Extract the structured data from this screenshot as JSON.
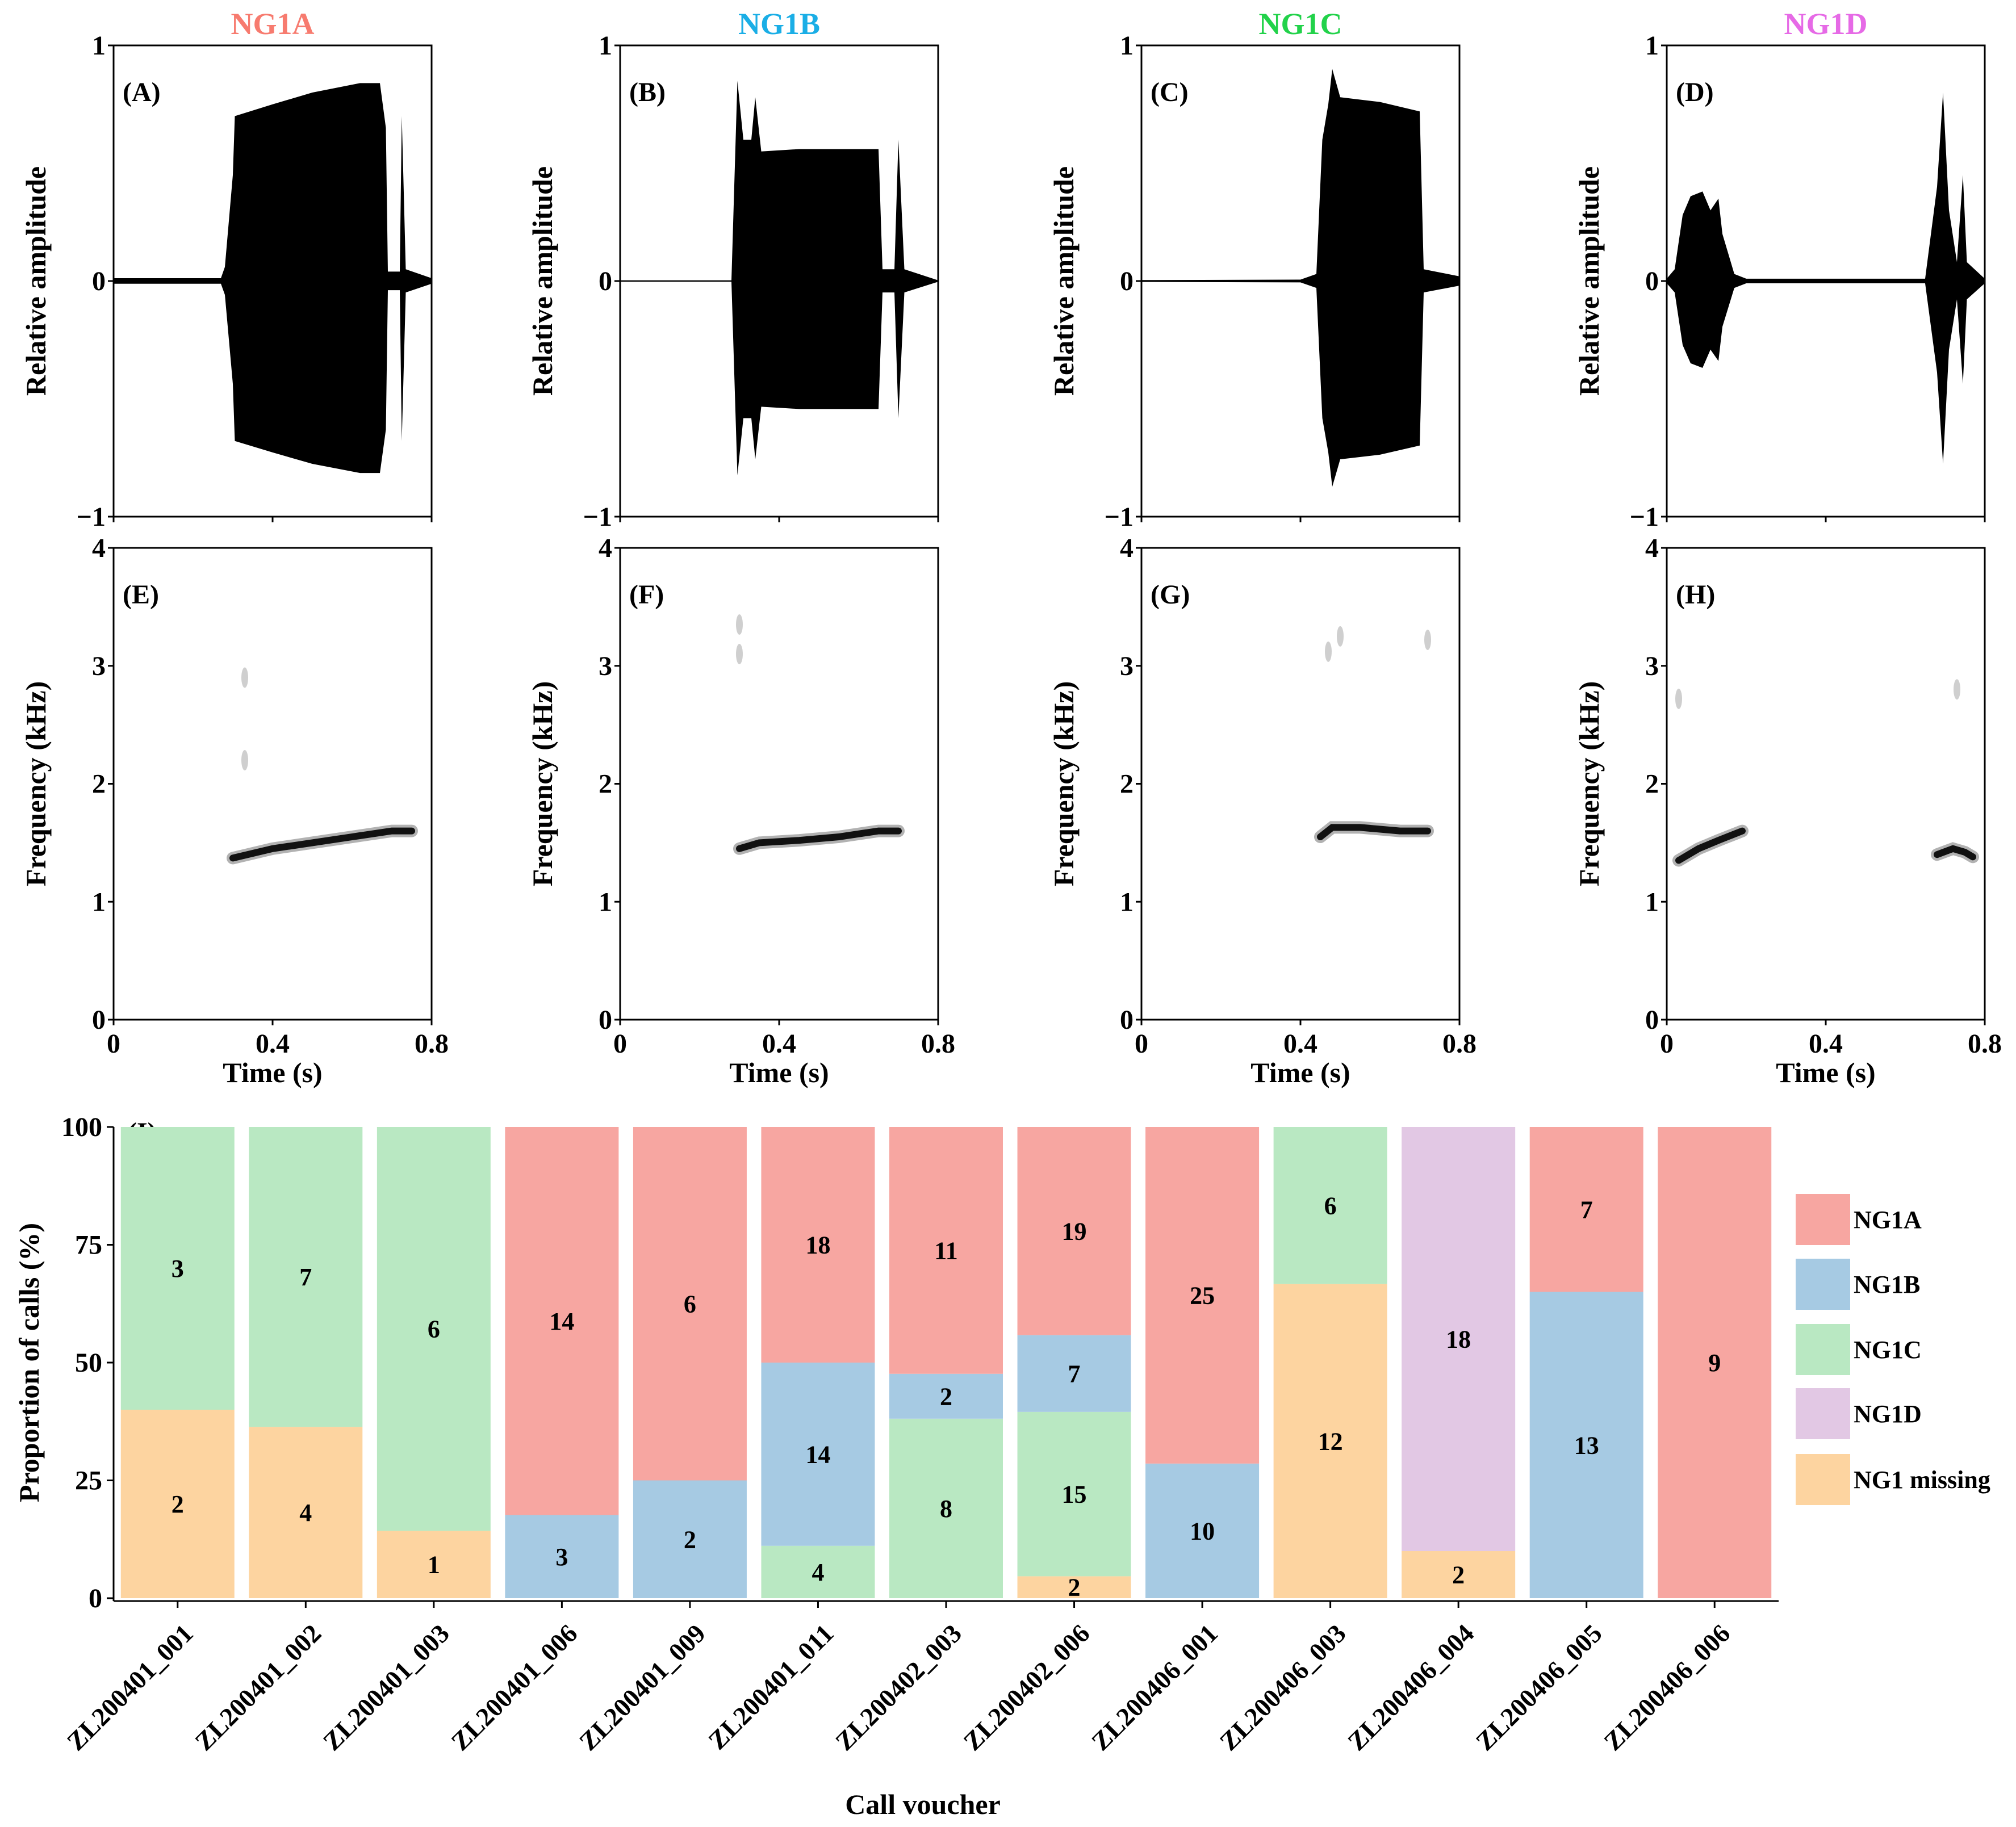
{
  "colors": {
    "NG1A": "#f7a6a1",
    "NG1B": "#a6cae3",
    "NG1C": "#b9e8c2",
    "NG1D": "#e2c8e4",
    "NG1 missing": "#fdd4a0",
    "title_NG1A": "#f77b6f",
    "title_NG1B": "#1aaee6",
    "title_NG1C": "#22d24a",
    "title_NG1D": "#e66ae6"
  },
  "chart_data": [
    {
      "type": "line",
      "kind": "waveform",
      "panels": [
        {
          "label": "(A)",
          "title": "NG1A",
          "ylabel": "Relative amplitude",
          "ylim": [
            -1,
            1
          ],
          "yticks": [
            "1",
            "0",
            "−1"
          ],
          "xlim": [
            0,
            0.8
          ],
          "xlabel": "",
          "envelope": [
            [
              0,
              0.012
            ],
            [
              0.27,
              0.012
            ],
            [
              0.28,
              0.06
            ],
            [
              0.3,
              0.45
            ],
            [
              0.305,
              0.7
            ],
            [
              0.4,
              0.75
            ],
            [
              0.5,
              0.8
            ],
            [
              0.62,
              0.84
            ],
            [
              0.67,
              0.84
            ],
            [
              0.685,
              0.65
            ],
            [
              0.69,
              0.04
            ],
            [
              0.72,
              0.04
            ],
            [
              0.725,
              0.7
            ],
            [
              0.735,
              0.05
            ],
            [
              0.8,
              0.012
            ]
          ]
        },
        {
          "label": "(B)",
          "title": "NG1B",
          "ylabel": "Relative amplitude",
          "ylim": [
            -1,
            1
          ],
          "yticks": [
            "1",
            "0",
            "−1"
          ],
          "xlim": [
            0,
            0.8
          ],
          "xlabel": "",
          "envelope": [
            [
              0,
              0.003
            ],
            [
              0.28,
              0.003
            ],
            [
              0.295,
              0.85
            ],
            [
              0.31,
              0.6
            ],
            [
              0.33,
              0.6
            ],
            [
              0.34,
              0.78
            ],
            [
              0.355,
              0.55
            ],
            [
              0.45,
              0.56
            ],
            [
              0.65,
              0.56
            ],
            [
              0.66,
              0.05
            ],
            [
              0.69,
              0.05
            ],
            [
              0.7,
              0.6
            ],
            [
              0.715,
              0.05
            ],
            [
              0.8,
              0.003
            ]
          ]
        },
        {
          "label": "(C)",
          "title": "NG1C",
          "ylabel": "Relative amplitude",
          "ylim": [
            -1,
            1
          ],
          "yticks": [
            "1",
            "0",
            "−1"
          ],
          "xlim": [
            0,
            0.8
          ],
          "xlabel": "",
          "envelope": [
            [
              0,
              0.004
            ],
            [
              0.4,
              0.006
            ],
            [
              0.44,
              0.03
            ],
            [
              0.455,
              0.6
            ],
            [
              0.47,
              0.75
            ],
            [
              0.48,
              0.9
            ],
            [
              0.5,
              0.78
            ],
            [
              0.6,
              0.76
            ],
            [
              0.7,
              0.72
            ],
            [
              0.71,
              0.05
            ],
            [
              0.8,
              0.02
            ]
          ]
        },
        {
          "label": "(D)",
          "title": "NG1D",
          "ylabel": "Relative amplitude",
          "ylim": [
            -1,
            1
          ],
          "yticks": [
            "1",
            "0",
            "−1"
          ],
          "xlim": [
            0,
            0.8
          ],
          "xlabel": "",
          "envelope": [
            [
              0,
              0.01
            ],
            [
              0.02,
              0.05
            ],
            [
              0.04,
              0.28
            ],
            [
              0.06,
              0.36
            ],
            [
              0.09,
              0.38
            ],
            [
              0.11,
              0.3
            ],
            [
              0.13,
              0.35
            ],
            [
              0.14,
              0.2
            ],
            [
              0.17,
              0.03
            ],
            [
              0.2,
              0.01
            ],
            [
              0.65,
              0.01
            ],
            [
              0.68,
              0.4
            ],
            [
              0.695,
              0.8
            ],
            [
              0.71,
              0.3
            ],
            [
              0.73,
              0.08
            ],
            [
              0.745,
              0.45
            ],
            [
              0.755,
              0.08
            ],
            [
              0.8,
              0.01
            ]
          ]
        }
      ]
    },
    {
      "type": "line",
      "kind": "spectrogram",
      "panels": [
        {
          "label": "(E)",
          "ylabel": "Frequency (kHz)",
          "xlabel": "Time (s)",
          "ylim": [
            0,
            4
          ],
          "xlim": [
            0,
            0.8
          ],
          "yticks": [
            "4",
            "3",
            "2",
            "1",
            "0"
          ],
          "xticks": [
            "0",
            "0.4",
            "0.8"
          ],
          "trace": [
            [
              0.3,
              1.37
            ],
            [
              0.4,
              1.45
            ],
            [
              0.5,
              1.5
            ],
            [
              0.6,
              1.55
            ],
            [
              0.7,
              1.6
            ],
            [
              0.75,
              1.6
            ]
          ],
          "faint": [
            [
              0.33,
              2.9
            ],
            [
              0.33,
              2.2
            ]
          ]
        },
        {
          "label": "(F)",
          "ylabel": "Frequency (kHz)",
          "xlabel": "Time (s)",
          "ylim": [
            0,
            4
          ],
          "xlim": [
            0,
            0.8
          ],
          "yticks": [
            "4",
            "3",
            "2",
            "1",
            "0"
          ],
          "xticks": [
            "0",
            "0.4",
            "0.8"
          ],
          "trace": [
            [
              0.3,
              1.45
            ],
            [
              0.35,
              1.5
            ],
            [
              0.45,
              1.52
            ],
            [
              0.55,
              1.55
            ],
            [
              0.65,
              1.6
            ],
            [
              0.7,
              1.6
            ]
          ],
          "faint": [
            [
              0.3,
              3.35
            ],
            [
              0.3,
              3.1
            ]
          ]
        },
        {
          "label": "(G)",
          "ylabel": "Frequency (kHz)",
          "xlabel": "Time (s)",
          "ylim": [
            0,
            4
          ],
          "xlim": [
            0,
            0.8
          ],
          "yticks": [
            "4",
            "3",
            "2",
            "1",
            "0"
          ],
          "xticks": [
            "0",
            "0.4",
            "0.8"
          ],
          "trace": [
            [
              0.45,
              1.55
            ],
            [
              0.48,
              1.63
            ],
            [
              0.55,
              1.63
            ],
            [
              0.65,
              1.6
            ],
            [
              0.72,
              1.6
            ]
          ],
          "faint": [
            [
              0.47,
              3.12
            ],
            [
              0.5,
              3.25
            ],
            [
              0.72,
              3.22
            ]
          ]
        },
        {
          "label": "(H)",
          "ylabel": "Frequency (kHz)",
          "xlabel": "Time (s)",
          "ylim": [
            0,
            4
          ],
          "xlim": [
            0,
            0.8
          ],
          "yticks": [
            "4",
            "3",
            "2",
            "1",
            "0"
          ],
          "xticks": [
            "0",
            "0.4",
            "0.8"
          ],
          "trace": [
            [
              0.03,
              1.35
            ],
            [
              0.08,
              1.45
            ],
            [
              0.13,
              1.52
            ],
            [
              0.19,
              1.6
            ]
          ],
          "trace2": [
            [
              0.68,
              1.4
            ],
            [
              0.72,
              1.45
            ],
            [
              0.75,
              1.42
            ],
            [
              0.77,
              1.38
            ]
          ],
          "faint": [
            [
              0.03,
              2.72
            ],
            [
              0.73,
              2.8
            ]
          ]
        }
      ]
    },
    {
      "type": "bar",
      "stacked": true,
      "label": "(I)",
      "ylabel": "Proportion of calls (%)",
      "xlabel": "Call voucher",
      "ylim": [
        0,
        100
      ],
      "yticks": [
        "0",
        "25",
        "50",
        "75",
        "100"
      ],
      "categories": [
        "ZL200401_001",
        "ZL200401_002",
        "ZL200401_003",
        "ZL200401_006",
        "ZL200401_009",
        "ZL200401_011",
        "ZL200402_003",
        "ZL200402_006",
        "ZL200406_001",
        "ZL200406_003",
        "ZL200406_004",
        "ZL200406_005",
        "ZL200406_006"
      ],
      "stack_order": [
        "NG1 missing",
        "NG1C",
        "NG1B",
        "NG1D",
        "NG1A"
      ],
      "legend": [
        "NG1A",
        "NG1B",
        "NG1C",
        "NG1D",
        "NG1 missing"
      ],
      "series": [
        {
          "name": "NG1A",
          "values": [
            0,
            0,
            0,
            14,
            6,
            18,
            11,
            19,
            25,
            0,
            0,
            7,
            9
          ]
        },
        {
          "name": "NG1B",
          "values": [
            0,
            0,
            0,
            3,
            2,
            14,
            2,
            7,
            10,
            0,
            0,
            13,
            0
          ]
        },
        {
          "name": "NG1C",
          "values": [
            3,
            7,
            6,
            0,
            0,
            4,
            8,
            15,
            0,
            6,
            0,
            0,
            0
          ]
        },
        {
          "name": "NG1D",
          "values": [
            0,
            0,
            0,
            0,
            0,
            0,
            0,
            0,
            0,
            0,
            18,
            0,
            0
          ]
        },
        {
          "name": "NG1 missing",
          "values": [
            2,
            4,
            1,
            0,
            0,
            0,
            0,
            2,
            0,
            12,
            2,
            0,
            0
          ]
        }
      ]
    }
  ]
}
